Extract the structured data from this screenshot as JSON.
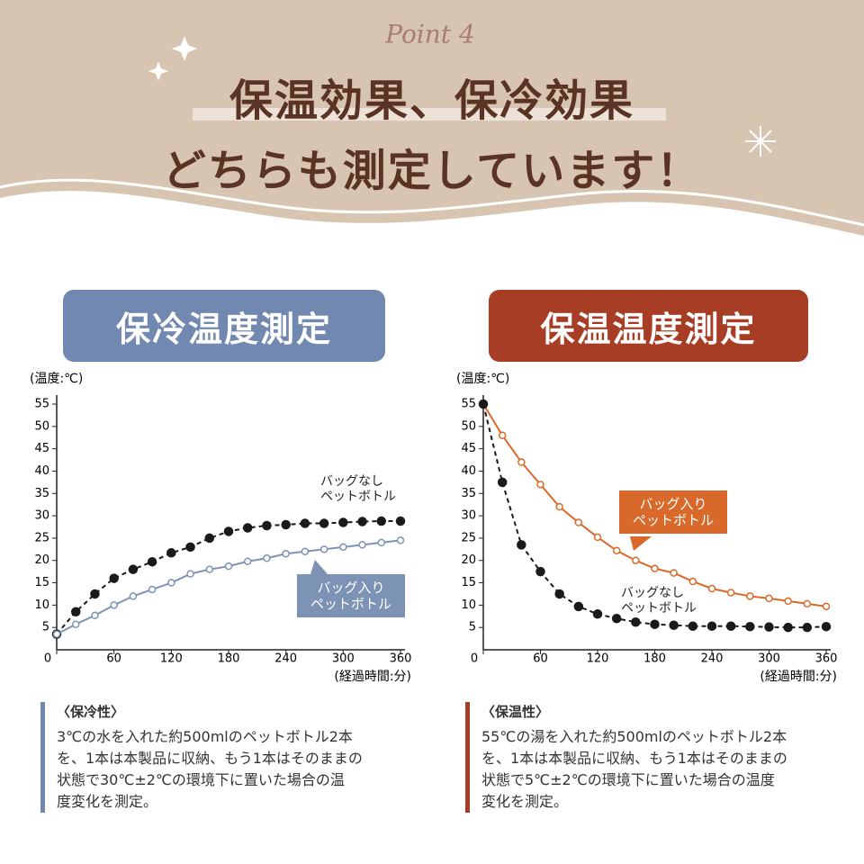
{
  "header": {
    "badge": "Point 4",
    "title_line1": "保温効果、保冷効果",
    "title_line2": "どちらも測定しています！"
  },
  "chart_data": [
    {
      "type": "line",
      "title": "保冷温度測定",
      "title_color": "#7189b0",
      "ylabel": "(温度:℃)",
      "xlabel": "(経過時間:分)",
      "x": [
        0,
        20,
        40,
        60,
        80,
        100,
        120,
        140,
        160,
        180,
        200,
        220,
        240,
        260,
        280,
        300,
        320,
        340,
        360
      ],
      "xlim": [
        0,
        360
      ],
      "xticks": [
        0,
        60,
        120,
        180,
        240,
        300,
        360
      ],
      "ylim": [
        0,
        55
      ],
      "yticks": [
        5,
        10,
        15,
        20,
        25,
        30,
        35,
        40,
        45,
        50,
        55
      ],
      "series": [
        {
          "name": "バッグなし\nペットボトル",
          "color": "#1a1a1a",
          "linestyle": "dashed",
          "marker": "filled",
          "values": [
            3.5,
            8.5,
            12.5,
            16,
            18,
            19.7,
            21.7,
            23,
            25,
            26.5,
            27.3,
            27.8,
            28,
            28.3,
            28.3,
            28.5,
            28.7,
            28.8,
            28.8
          ]
        },
        {
          "name": "バッグ入り\nペットボトル",
          "color": "#7d93b5",
          "linestyle": "solid",
          "marker": "hollow",
          "values": [
            3.5,
            5.7,
            7.7,
            10,
            12,
            13.5,
            15,
            17,
            18,
            18.7,
            19.8,
            20.5,
            21.5,
            22,
            22.5,
            23,
            23.5,
            24,
            24.5
          ]
        }
      ],
      "note": {
        "heading": "〈保冷性〉",
        "body": "3℃の水を入れた約500mlのペットボトル2本\nを、1本は本製品に収納、もう1本はそのままの\n状態で30℃±2℃の環境下に置いた場合の温\n度変化を測定。"
      }
    },
    {
      "type": "line",
      "title": "保温温度測定",
      "title_color": "#a83d25",
      "ylabel": "(温度:℃)",
      "xlabel": "(経過時間:分)",
      "x": [
        0,
        20,
        40,
        60,
        80,
        100,
        120,
        140,
        160,
        180,
        200,
        220,
        240,
        260,
        280,
        300,
        320,
        340,
        360
      ],
      "xlim": [
        0,
        360
      ],
      "xticks": [
        0,
        60,
        120,
        180,
        240,
        300,
        360
      ],
      "ylim": [
        0,
        55
      ],
      "yticks": [
        5,
        10,
        15,
        20,
        25,
        30,
        35,
        40,
        45,
        50,
        55
      ],
      "series": [
        {
          "name": "バッグ入り\nペットボトル",
          "color": "#d9692a",
          "linestyle": "solid",
          "marker": "hollow",
          "values": [
            55,
            48,
            42,
            37,
            32,
            28.5,
            25.2,
            22.2,
            20,
            18.2,
            17.2,
            15.3,
            13.7,
            12.8,
            12,
            11.5,
            10.9,
            10.3,
            9.7
          ]
        },
        {
          "name": "バッグなし\nペットボトル",
          "color": "#1a1a1a",
          "linestyle": "dashed",
          "marker": "filled",
          "values": [
            55,
            37.5,
            23.5,
            17.5,
            12.5,
            9.7,
            8,
            7,
            6.2,
            5.7,
            5.5,
            5.3,
            5.3,
            5.3,
            5.2,
            5.1,
            5,
            5,
            5.2
          ]
        }
      ],
      "note": {
        "heading": "〈保温性〉",
        "body": "55℃の湯を入れた約500mlのペットボトル2本\nを、1本は本製品に収納、もう1本はそのままの\n状態で5℃±2℃の環境下に置いた場合の温度\n変化を測定。"
      }
    }
  ]
}
